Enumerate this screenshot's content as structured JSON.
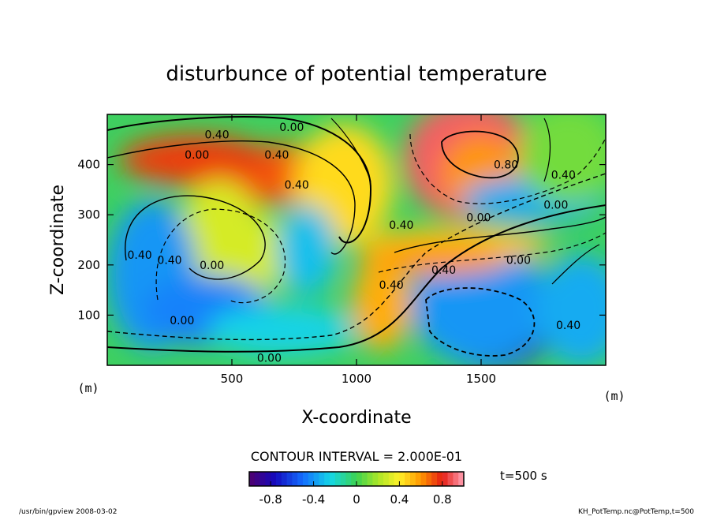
{
  "chart_data": {
    "type": "heatmap",
    "title": "disturbunce of potential temperature",
    "xlabel": "X-coordinate",
    "ylabel": "Z-coordinate",
    "x_unit": "(m)",
    "y_unit": "(m)",
    "xlim": [
      0,
      2000
    ],
    "ylim": [
      0,
      500
    ],
    "xticks": [
      500,
      1000,
      1500
    ],
    "yticks": [
      100,
      200,
      300,
      400
    ],
    "contour_interval_text": "CONTOUR INTERVAL = 2.000E-01",
    "time_text": "t=500 s",
    "colorbar": {
      "range": [
        -1.0,
        1.0
      ],
      "ticks": [
        -0.8,
        -0.4,
        0,
        0.4,
        0.8
      ],
      "tick_labels": [
        "-0.8",
        "-0.4",
        "0",
        "0.4",
        "0.8"
      ],
      "colormap": "rainbow"
    },
    "contour_labels": [
      {
        "text": "0.40",
        "x": 440,
        "z": 460
      },
      {
        "text": "0.00",
        "x": 740,
        "z": 475
      },
      {
        "text": "0.00",
        "x": 360,
        "z": 420
      },
      {
        "text": "0.40",
        "x": 680,
        "z": 420
      },
      {
        "text": "0.40",
        "x": 760,
        "z": 360
      },
      {
        "text": "0.80",
        "x": 1600,
        "z": 400
      },
      {
        "text": "0.40",
        "x": 1830,
        "z": 380
      },
      {
        "text": "0.00",
        "x": 1800,
        "z": 320
      },
      {
        "text": "0.00",
        "x": 1490,
        "z": 295
      },
      {
        "text": "0.40",
        "x": 1180,
        "z": 280
      },
      {
        "text": "0.40",
        "x": 130,
        "z": 220
      },
      {
        "text": "0.40",
        "x": 250,
        "z": 210
      },
      {
        "text": "0.00",
        "x": 420,
        "z": 200
      },
      {
        "text": "0.40",
        "x": 1350,
        "z": 190
      },
      {
        "text": "0.00",
        "x": 1650,
        "z": 210
      },
      {
        "text": "0.40",
        "x": 1140,
        "z": 160
      },
      {
        "text": "0.00",
        "x": 300,
        "z": 90
      },
      {
        "text": "0.00",
        "x": 650,
        "z": 15
      },
      {
        "text": "0.40",
        "x": 1850,
        "z": 80
      }
    ]
  },
  "footer": {
    "left": "/usr/bin/gpview  2008-03-02",
    "right": "KH_PotTemp.nc@PotTemp,t=500"
  }
}
